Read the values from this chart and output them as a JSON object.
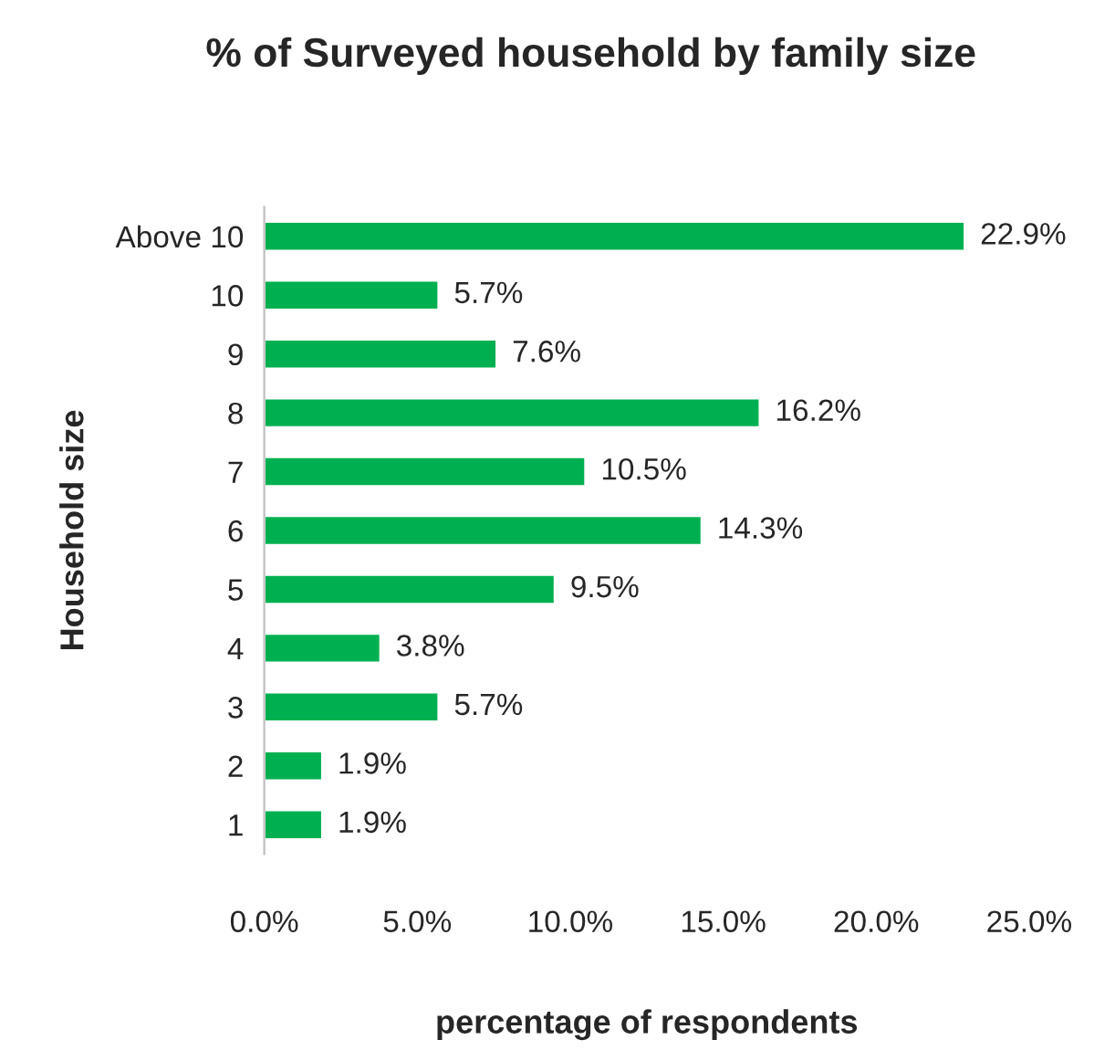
{
  "chart_data": {
    "type": "bar",
    "orientation": "horizontal",
    "title": "% of Surveyed household by family size",
    "xlabel": "percentage of respondents",
    "ylabel": "Household size",
    "categories": [
      "Above 10",
      "10",
      "9",
      "8",
      "7",
      "6",
      "5",
      "4",
      "3",
      "2",
      "1"
    ],
    "values": [
      22.9,
      5.7,
      7.6,
      16.2,
      10.5,
      14.3,
      9.5,
      3.8,
      5.7,
      1.9,
      1.9
    ],
    "value_labels": [
      "22.9%",
      "5.7%",
      "7.6%",
      "16.2%",
      "10.5%",
      "14.3%",
      "9.5%",
      "3.8%",
      "5.7%",
      "1.9%",
      "1.9%"
    ],
    "color": "#00b050",
    "xlim": [
      0,
      25
    ],
    "xticks": [
      {
        "value": 0,
        "label": "0.0%"
      },
      {
        "value": 5,
        "label": "5.0%"
      },
      {
        "value": 10,
        "label": "10.0%"
      },
      {
        "value": 15,
        "label": "15.0%"
      },
      {
        "value": 20,
        "label": "20.0%"
      },
      {
        "value": 25,
        "label": "25.0%"
      }
    ],
    "grid": false,
    "legend": false
  }
}
